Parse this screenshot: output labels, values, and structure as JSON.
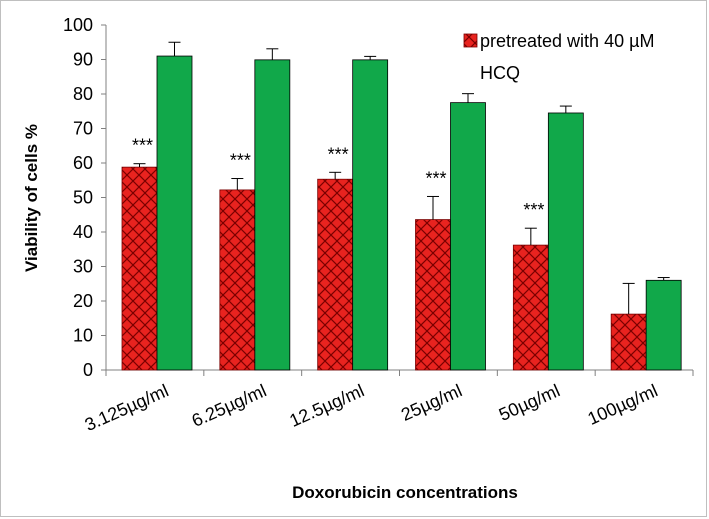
{
  "chart_data": {
    "type": "bar",
    "xlabel": "Doxorubicin concentrations",
    "ylabel": "Viability of cells %",
    "ylim": [
      0,
      100
    ],
    "yticks": [
      "0",
      "10",
      "20",
      "30",
      "40",
      "50",
      "60",
      "70",
      "80",
      "90",
      "100"
    ],
    "categories": [
      "3.125µg/ml",
      "6.25µg/ml",
      "12.5µg/ml",
      "25µg/ml",
      "50µg/ml",
      "100µg/ml"
    ],
    "legend": {
      "position": "top-right",
      "lines": [
        "pretreated with 40 µM",
        "HCQ"
      ]
    },
    "series": [
      {
        "name": "pretreated with 40 µM HCQ",
        "color": "#e8231f",
        "pattern": "crosshatch",
        "values": [
          58.8,
          52.2,
          55.3,
          43.6,
          36.2,
          16.2
        ],
        "errors": [
          1.0,
          3.3,
          2.0,
          6.7,
          4.9,
          8.9
        ],
        "annotations": [
          "***",
          "***",
          "***",
          "***",
          "***",
          ""
        ]
      },
      {
        "color": "#11a84a",
        "pattern": "solid",
        "values": [
          91.0,
          89.9,
          89.9,
          77.5,
          74.5,
          26.0
        ],
        "errors": [
          4.0,
          3.2,
          1.0,
          2.6,
          2.0,
          0.8
        ]
      }
    ]
  }
}
